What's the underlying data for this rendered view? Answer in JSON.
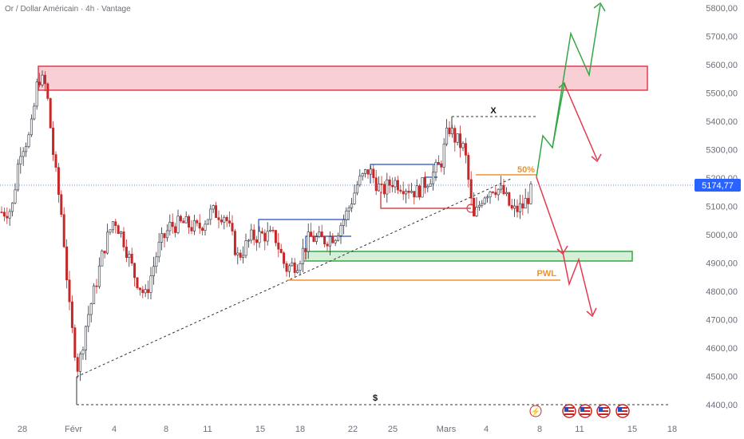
{
  "header": {
    "title": "Or / Dollar Américain · 4h · Vantage"
  },
  "colors": {
    "up": "#2a2e39",
    "down": "#c62828",
    "blue": "#1e4fc4",
    "red_zone": "#e53950",
    "green_zone": "#35a745",
    "orange": "#f2922a",
    "price_tag": "#2962ff"
  },
  "price_axis": {
    "labels": [
      "5800,00",
      "5700,00",
      "5600,00",
      "5500,00",
      "5400,00",
      "5300,00",
      "5200,00",
      "5100,00",
      "5000,00",
      "4900,00",
      "4800,00",
      "4700,00",
      "4600,00",
      "4500,00",
      "4400,00"
    ],
    "current_price": "5174,77"
  },
  "time_axis": {
    "labels": [
      "28",
      "Févr",
      "4",
      "8",
      "11",
      "15",
      "18",
      "22",
      "25",
      "Mars",
      "4",
      "8",
      "11",
      "15",
      "18"
    ]
  },
  "annotations": {
    "fifty": "50%",
    "pwl": "PWL",
    "x": "X",
    "dollar": "$"
  },
  "icons": [
    "flash-icon",
    "us-flag-icon",
    "us-flag-icon",
    "us-flag-icon",
    "us-flag-icon"
  ],
  "chart_data": {
    "type": "candlestick",
    "title": "Or / Dollar Américain · 4h · Vantage",
    "ylim": [
      4380,
      5830
    ],
    "x_ticks": [
      "28",
      "Févr",
      "4",
      "8",
      "11",
      "15",
      "18",
      "22",
      "25",
      "Mars",
      "4",
      "8",
      "11",
      "15",
      "18"
    ],
    "y_ticks": [
      5800,
      5700,
      5600,
      5500,
      5400,
      5300,
      5200,
      5100,
      5000,
      4900,
      4800,
      4700,
      4600,
      4500,
      4400
    ],
    "current_price": 5174.77,
    "key_levels": {
      "supply_zone": [
        5505,
        5590
      ],
      "demand_zone": [
        4915,
        4945
      ],
      "fifty_percent": 5210,
      "pwl": 4840,
      "x_level": 5420,
      "dollar_level": 4400
    },
    "path_points": [
      {
        "x": 5,
        "close": 5080
      },
      {
        "x": 15,
        "close": 5090
      },
      {
        "x": 25,
        "close": 5300
      },
      {
        "x": 38,
        "close": 5350
      },
      {
        "x": 48,
        "close": 5560
      },
      {
        "x": 58,
        "close": 5520
      },
      {
        "x": 68,
        "close": 5250
      },
      {
        "x": 78,
        "close": 5050
      },
      {
        "x": 88,
        "close": 4700
      },
      {
        "x": 98,
        "close": 4520
      },
      {
        "x": 108,
        "close": 4690
      },
      {
        "x": 118,
        "close": 4800
      },
      {
        "x": 130,
        "close": 4950
      },
      {
        "x": 143,
        "close": 5060
      },
      {
        "x": 155,
        "close": 4980
      },
      {
        "x": 168,
        "close": 4860
      },
      {
        "x": 182,
        "close": 4780
      },
      {
        "x": 198,
        "close": 4950
      },
      {
        "x": 213,
        "close": 5030
      },
      {
        "x": 230,
        "close": 5040
      },
      {
        "x": 248,
        "close": 5020
      },
      {
        "x": 265,
        "close": 5080
      },
      {
        "x": 282,
        "close": 5070
      },
      {
        "x": 298,
        "close": 4920
      },
      {
        "x": 315,
        "close": 4990
      },
      {
        "x": 330,
        "close": 5000
      },
      {
        "x": 345,
        "close": 4990
      },
      {
        "x": 358,
        "close": 4880
      },
      {
        "x": 372,
        "close": 4900
      },
      {
        "x": 388,
        "close": 4990
      },
      {
        "x": 405,
        "close": 4980
      },
      {
        "x": 420,
        "close": 5000
      },
      {
        "x": 435,
        "close": 5080
      },
      {
        "x": 448,
        "close": 5180
      },
      {
        "x": 462,
        "close": 5230
      },
      {
        "x": 478,
        "close": 5150
      },
      {
        "x": 492,
        "close": 5190
      },
      {
        "x": 508,
        "close": 5170
      },
      {
        "x": 522,
        "close": 5150
      },
      {
        "x": 538,
        "close": 5200
      },
      {
        "x": 552,
        "close": 5250
      },
      {
        "x": 562,
        "close": 5380
      },
      {
        "x": 570,
        "close": 5340
      },
      {
        "x": 582,
        "close": 5300
      },
      {
        "x": 593,
        "close": 5050
      },
      {
        "x": 605,
        "close": 5140
      },
      {
        "x": 618,
        "close": 5170
      },
      {
        "x": 630,
        "close": 5150
      },
      {
        "x": 642,
        "close": 5080
      },
      {
        "x": 655,
        "close": 5100
      },
      {
        "x": 668,
        "close": 5165
      }
    ]
  }
}
